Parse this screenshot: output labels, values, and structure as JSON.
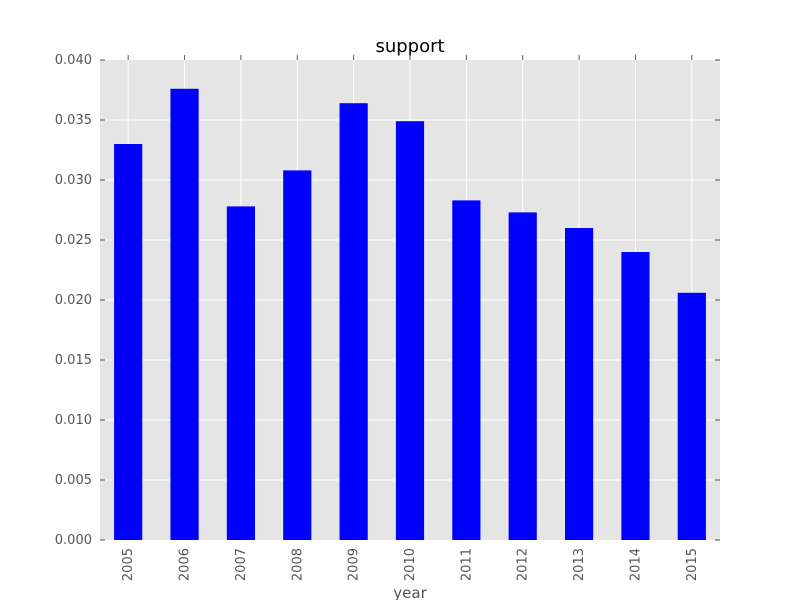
{
  "chart_data": {
    "type": "bar",
    "title": "support",
    "xlabel": "year",
    "ylabel": "",
    "categories": [
      "2005",
      "2006",
      "2007",
      "2008",
      "2009",
      "2010",
      "2011",
      "2012",
      "2013",
      "2014",
      "2015"
    ],
    "values": [
      0.033,
      0.0376,
      0.0278,
      0.0308,
      0.0364,
      0.0349,
      0.0283,
      0.0273,
      0.026,
      0.024,
      0.0206
    ],
    "ylim": [
      0,
      0.04
    ],
    "yticks": [
      "0.000",
      "0.005",
      "0.010",
      "0.015",
      "0.020",
      "0.025",
      "0.030",
      "0.035",
      "0.040"
    ],
    "grid": true,
    "legend": "none",
    "colors": {
      "bar": "#0000ff",
      "plot_background": "#e5e5e5",
      "grid": "#ffffff"
    }
  }
}
